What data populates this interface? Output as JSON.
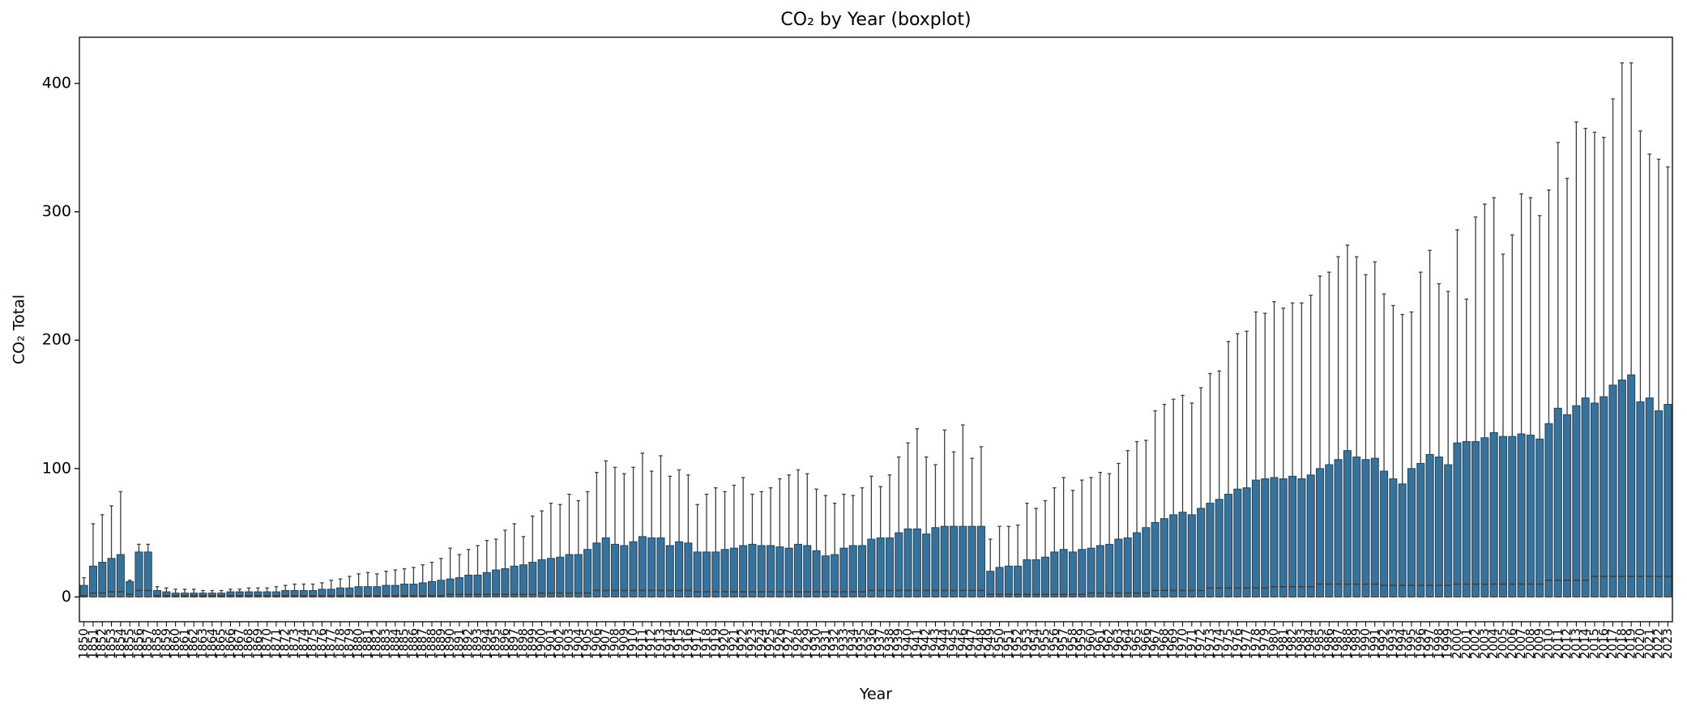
{
  "chart_data": {
    "type": "box",
    "title": "CO₂ by Year (boxplot)",
    "x_label": "Year",
    "y_label": "CO₂ Total",
    "color": "#3274a1",
    "edge_color": "#3d3d3d",
    "ylim": [
      -19.3,
      436
    ],
    "yticks": [
      0,
      100,
      200,
      300,
      400
    ],
    "categories": [
      1850,
      1851,
      1852,
      1853,
      1854,
      1855,
      1856,
      1857,
      1858,
      1859,
      1860,
      1861,
      1862,
      1863,
      1864,
      1865,
      1866,
      1867,
      1868,
      1869,
      1870,
      1871,
      1872,
      1873,
      1874,
      1875,
      1876,
      1877,
      1878,
      1879,
      1880,
      1881,
      1882,
      1883,
      1884,
      1885,
      1886,
      1887,
      1888,
      1889,
      1890,
      1891,
      1892,
      1893,
      1894,
      1895,
      1896,
      1897,
      1898,
      1899,
      1900,
      1901,
      1902,
      1903,
      1904,
      1905,
      1906,
      1907,
      1908,
      1909,
      1910,
      1911,
      1912,
      1913,
      1914,
      1915,
      1916,
      1917,
      1918,
      1919,
      1920,
      1921,
      1922,
      1923,
      1924,
      1925,
      1926,
      1927,
      1928,
      1929,
      1930,
      1931,
      1932,
      1933,
      1934,
      1935,
      1936,
      1937,
      1938,
      1939,
      1940,
      1941,
      1942,
      1943,
      1944,
      1945,
      1946,
      1947,
      1948,
      1949,
      1950,
      1951,
      1952,
      1953,
      1954,
      1955,
      1956,
      1957,
      1958,
      1959,
      1960,
      1961,
      1962,
      1963,
      1964,
      1965,
      1966,
      1967,
      1968,
      1969,
      1970,
      1971,
      1972,
      1973,
      1974,
      1975,
      1976,
      1977,
      1978,
      1979,
      1980,
      1981,
      1982,
      1983,
      1984,
      1985,
      1986,
      1987,
      1988,
      1989,
      1990,
      1991,
      1992,
      1993,
      1994,
      1995,
      1996,
      1997,
      1998,
      1999,
      2000,
      2001,
      2002,
      2003,
      2004,
      2005,
      2006,
      2007,
      2008,
      2009,
      2010,
      2011,
      2012,
      2013,
      2014,
      2015,
      2016,
      2017,
      2018,
      2019,
      2020,
      2021,
      2022,
      2023
    ],
    "whislo": [
      0,
      0,
      0,
      0,
      0,
      0,
      0,
      0,
      0,
      0,
      0,
      0,
      0,
      0,
      0,
      0,
      0,
      0,
      0,
      0,
      0,
      0,
      0,
      0,
      0,
      0,
      0,
      0,
      0,
      0,
      0,
      0,
      0,
      0,
      0,
      0,
      0,
      0,
      0,
      0,
      0,
      0,
      0,
      0,
      0,
      0,
      0,
      0,
      0,
      0,
      0,
      0,
      0,
      0,
      0,
      0,
      0,
      0,
      0,
      0,
      0,
      0,
      0,
      0,
      0,
      0,
      0,
      0,
      0,
      0,
      0,
      0,
      0,
      0,
      0,
      0,
      0,
      0,
      0,
      0,
      0,
      0,
      0,
      0,
      0,
      0,
      0,
      0,
      0,
      0,
      0,
      0,
      0,
      0,
      0,
      0,
      0,
      0,
      0,
      0,
      0,
      0,
      0,
      0,
      0,
      0,
      0,
      0,
      0,
      0,
      0,
      0,
      0,
      0,
      0,
      0,
      0,
      0,
      0,
      0,
      0,
      0,
      0,
      0,
      0,
      0,
      0,
      0,
      0,
      0,
      0,
      0,
      0,
      0,
      0,
      0,
      0,
      0,
      0,
      0,
      0,
      0,
      0,
      0,
      0,
      0,
      0,
      0,
      0,
      0,
      0,
      0,
      0,
      0,
      0,
      0,
      0,
      0,
      0,
      0,
      0,
      0,
      0,
      0,
      0,
      0,
      0,
      0,
      0,
      0,
      0,
      0,
      0,
      0
    ],
    "q1": [
      0,
      0,
      0,
      0,
      0,
      0,
      0,
      0,
      0,
      0,
      0,
      0,
      0,
      0,
      0,
      0,
      0,
      0,
      0,
      0,
      0,
      0,
      0,
      0,
      0,
      0,
      0,
      0,
      0,
      0,
      0,
      0,
      0,
      0,
      0,
      0,
      0,
      0,
      0,
      0,
      0,
      0,
      0,
      0,
      0,
      0,
      0,
      0,
      0,
      0,
      0,
      0,
      0,
      0,
      0,
      0,
      0,
      0,
      0,
      0,
      0,
      0,
      0,
      0,
      0,
      0,
      0,
      0,
      0,
      0,
      0,
      0,
      0,
      0,
      0,
      0,
      0,
      0,
      0,
      0,
      0,
      0,
      0,
      0,
      0,
      0,
      0,
      0,
      0,
      0,
      0,
      0,
      0,
      0,
      0,
      0,
      0,
      0,
      0,
      0,
      0,
      0,
      0,
      0,
      0,
      0,
      0,
      0,
      0,
      0,
      0,
      0,
      0,
      0,
      0,
      0,
      0,
      0,
      0,
      0,
      0,
      0,
      0,
      0,
      0,
      0,
      0,
      0,
      0,
      0,
      0,
      0,
      0,
      0,
      0,
      0,
      0,
      0,
      0,
      0,
      0,
      0,
      0,
      0,
      0,
      0,
      0,
      0,
      0,
      0,
      0,
      0,
      0,
      0,
      0,
      0,
      0,
      0,
      0,
      0,
      0,
      0,
      0,
      0,
      0,
      0,
      0,
      0,
      0,
      0,
      0,
      0,
      0,
      0
    ],
    "median": [
      1,
      3,
      3,
      4,
      4,
      2,
      5,
      5,
      1,
      1,
      1,
      1,
      1,
      1,
      1,
      1,
      1,
      1,
      1,
      1,
      1,
      1,
      1,
      1,
      1,
      1,
      1,
      1,
      1,
      1,
      1,
      1,
      1,
      1,
      1,
      1,
      1,
      1,
      1,
      1,
      2,
      2,
      2,
      2,
      2,
      2,
      2,
      2,
      2,
      2,
      3,
      3,
      3,
      3,
      3,
      3,
      5,
      5,
      5,
      5,
      5,
      5,
      5,
      5,
      5,
      5,
      5,
      4,
      4,
      4,
      4,
      4,
      4,
      4,
      4,
      4,
      4,
      4,
      4,
      4,
      4,
      4,
      4,
      4,
      4,
      4,
      5,
      5,
      5,
      5,
      5,
      5,
      5,
      5,
      5,
      5,
      5,
      5,
      5,
      2,
      2,
      2,
      2,
      2,
      2,
      2,
      2,
      2,
      2,
      2,
      3,
      3,
      3,
      3,
      3,
      3,
      3,
      5,
      5,
      5,
      5,
      5,
      5,
      7,
      7,
      7,
      7,
      7,
      7,
      7,
      8,
      8,
      8,
      8,
      8,
      10,
      10,
      10,
      10,
      10,
      10,
      10,
      9,
      9,
      9,
      9,
      9,
      9,
      9,
      9,
      10,
      10,
      10,
      10,
      10,
      10,
      10,
      10,
      10,
      10,
      13,
      13,
      13,
      13,
      13,
      16,
      16,
      16,
      16,
      16,
      16,
      16,
      16,
      16
    ],
    "q3": [
      9,
      24,
      27,
      30,
      33,
      12,
      35,
      35,
      5,
      4,
      3,
      3,
      3,
      3,
      3,
      3,
      4,
      4,
      4,
      4,
      4,
      4,
      5,
      5,
      5,
      5,
      6,
      6,
      7,
      7,
      8,
      8,
      8,
      9,
      9,
      10,
      10,
      11,
      12,
      13,
      14,
      15,
      17,
      17,
      19,
      21,
      22,
      24,
      25,
      27,
      29,
      30,
      31,
      33,
      33,
      37,
      42,
      46,
      41,
      40,
      43,
      47,
      46,
      46,
      40,
      43,
      42,
      35,
      35,
      35,
      37,
      38,
      40,
      41,
      40,
      40,
      39,
      38,
      41,
      40,
      36,
      32,
      33,
      38,
      40,
      40,
      45,
      46,
      46,
      50,
      53,
      53,
      49,
      54,
      55,
      55,
      55,
      55,
      55,
      20,
      23,
      24,
      24,
      29,
      29,
      31,
      35,
      37,
      35,
      37,
      38,
      40,
      41,
      45,
      46,
      50,
      54,
      58,
      61,
      64,
      66,
      64,
      69,
      73,
      76,
      80,
      84,
      85,
      91,
      92,
      93,
      92,
      94,
      92,
      95,
      100,
      103,
      107,
      114,
      109,
      107,
      108,
      98,
      92,
      88,
      100,
      104,
      111,
      109,
      103,
      120,
      121,
      121,
      124,
      128,
      125,
      125,
      127,
      126,
      123,
      135,
      147,
      142,
      149,
      155,
      151,
      156,
      165,
      169,
      173,
      152,
      155,
      145,
      150
    ],
    "whishi": [
      15,
      57,
      64,
      71,
      82,
      13,
      41,
      41,
      8,
      7,
      6,
      6,
      6,
      5,
      5,
      5,
      6,
      6,
      7,
      7,
      7,
      8,
      9,
      10,
      10,
      10,
      11,
      13,
      14,
      16,
      18,
      19,
      18,
      20,
      21,
      22,
      23,
      25,
      27,
      30,
      38,
      33,
      37,
      40,
      44,
      45,
      52,
      57,
      47,
      63,
      67,
      73,
      72,
      80,
      75,
      82,
      97,
      106,
      101,
      96,
      101,
      112,
      98,
      110,
      94,
      99,
      95,
      72,
      80,
      85,
      82,
      87,
      93,
      80,
      82,
      85,
      92,
      95,
      99,
      96,
      84,
      79,
      73,
      80,
      79,
      85,
      94,
      86,
      95,
      109,
      120,
      131,
      109,
      103,
      130,
      113,
      134,
      108,
      117,
      45,
      55,
      55,
      56,
      73,
      69,
      75,
      85,
      93,
      83,
      91,
      93,
      97,
      96,
      104,
      114,
      121,
      122,
      145,
      150,
      154,
      157,
      151,
      163,
      174,
      176,
      199,
      205,
      207,
      222,
      221,
      230,
      225,
      229,
      229,
      235,
      250,
      253,
      265,
      274,
      265,
      251,
      261,
      236,
      227,
      220,
      222,
      253,
      270,
      244,
      238,
      286,
      232,
      296,
      306,
      311,
      267,
      282,
      314,
      311,
      297,
      317,
      354,
      326,
      370,
      365,
      362,
      358,
      388,
      416,
      416,
      363,
      345,
      341,
      335
    ]
  }
}
